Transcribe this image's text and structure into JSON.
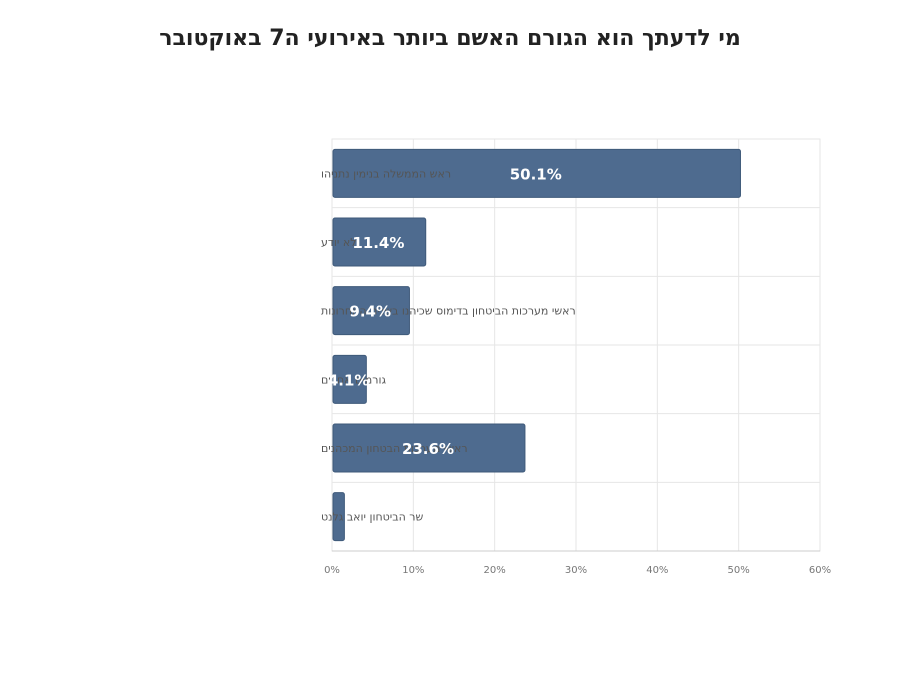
{
  "chart_data": {
    "type": "bar",
    "orientation": "horizontal",
    "title": "מי לדעתך הוא הגורם האשם ביותר באירועי ה7 באוקטובר",
    "categories": [
      "ראש הממשלה בנימין נתניהו",
      "לא יודע",
      "ראשי מערכות הביטחון בדימוס שכיהנו בשנים האחרונות",
      "גורמים אחרים",
      "ראשי מערכות הבטחון המכהנים",
      "שר הביטחון יואב גלנט"
    ],
    "values": [
      50.1,
      11.4,
      9.4,
      4.1,
      23.6,
      1.4
    ],
    "data_labels": [
      "50.1%",
      "11.4%",
      "9.4%",
      "4.1%",
      "23.6%",
      ""
    ],
    "xlim": [
      0,
      60
    ],
    "x_ticks": [
      0,
      10,
      20,
      30,
      40,
      50,
      60
    ],
    "x_tick_labels": [
      "0%",
      "10%",
      "20%",
      "30%",
      "40%",
      "50%",
      "60%"
    ],
    "grid": true,
    "legend": "none",
    "bar_color": "#4e6b8f"
  }
}
